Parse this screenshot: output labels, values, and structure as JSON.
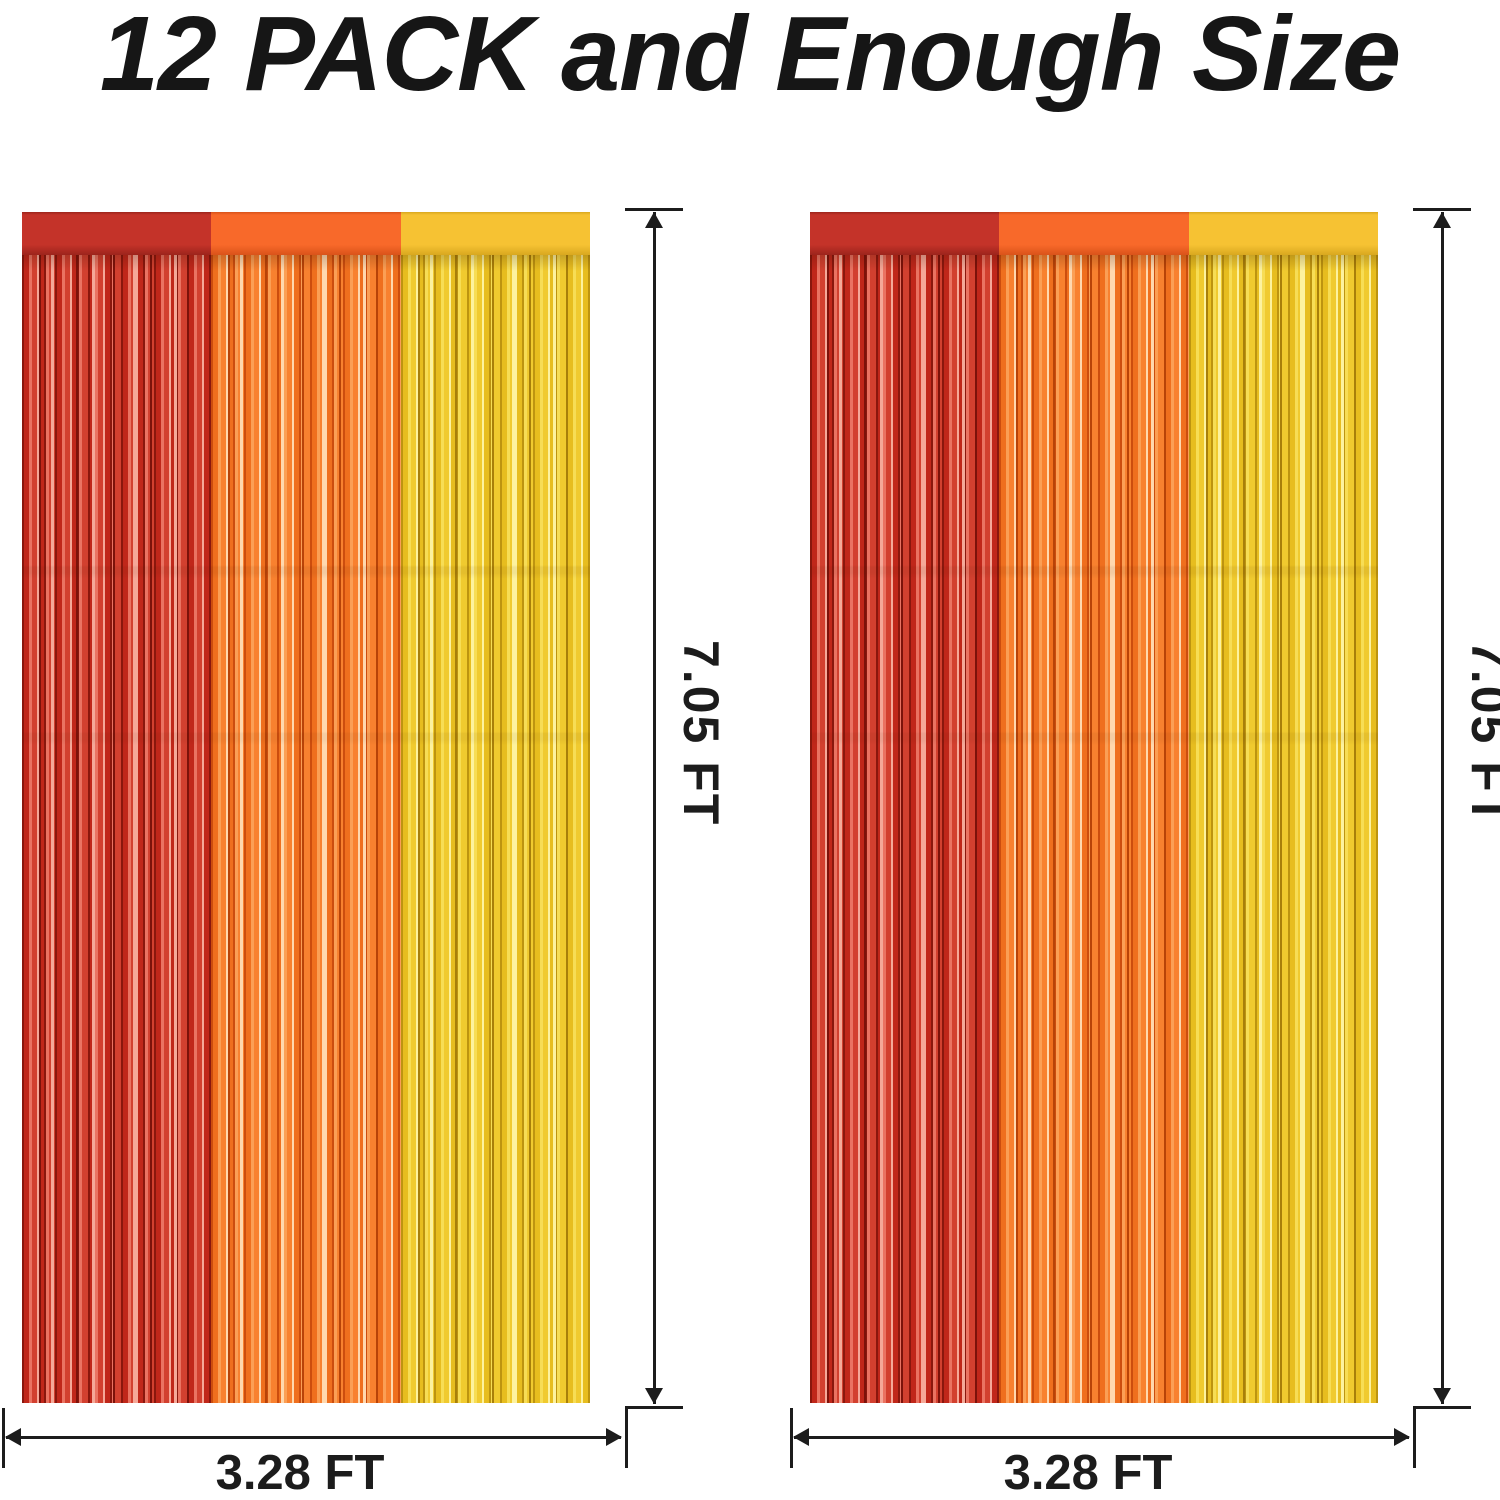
{
  "title": "12 PACK and Enough Size",
  "dimension_labels": {
    "height": "7.05 FT",
    "width": "3.28 FT"
  },
  "colors": {
    "background": "#ffffff",
    "title_text": "#161616",
    "dimension_line": "#1c1c1c"
  },
  "curtains": [
    {
      "id": "curtain-1",
      "panel_order": [
        "red",
        "orange",
        "yellow"
      ]
    },
    {
      "id": "curtain-2",
      "panel_order": [
        "red",
        "orange",
        "yellow"
      ]
    }
  ],
  "palettes": {
    "red": {
      "header": "#c43329",
      "header_edge": "#9c241c",
      "strand_dark": "#8a170d",
      "strand_darker": "#7c120a",
      "strand_mid": "#c0271a",
      "strand_mid2": "#d2402f",
      "strand_light": "#ea7362",
      "strand_highlight": "#f5a898"
    },
    "orange": {
      "header": "#f8692a",
      "header_edge": "#d9531a",
      "strand_dark": "#cc4d0e",
      "strand_darker": "#b84308",
      "strand_mid": "#ef6f1e",
      "strand_mid2": "#f8812f",
      "strand_light": "#fb9f55",
      "strand_highlight": "#ffd8ae"
    },
    "yellow": {
      "header": "#f6c233",
      "header_edge": "#d9a81f",
      "strand_dark": "#bd9410",
      "strand_darker": "#a87f0a",
      "strand_mid": "#e7bd1f",
      "strand_mid2": "#f0ca2f",
      "strand_light": "#f7dd55",
      "strand_highlight": "#fdf29e"
    }
  }
}
